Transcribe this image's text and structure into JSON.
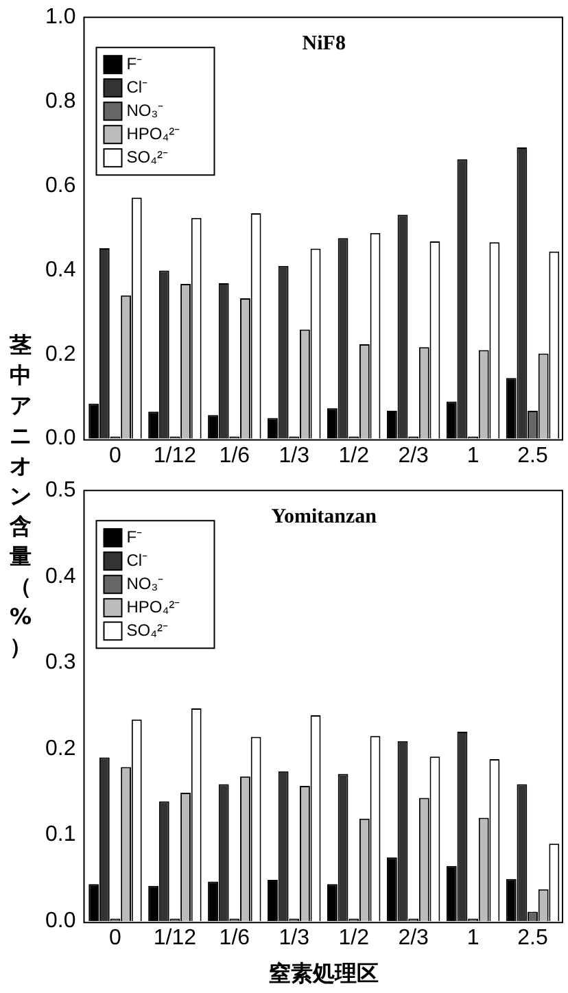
{
  "chart_data": [
    {
      "type": "bar",
      "title": "NiF8",
      "ylabel": "茎中アニオン含量（%）",
      "categories": [
        "0",
        "1/12",
        "1/6",
        "1/3",
        "1/2",
        "2/3",
        "1",
        "2.5"
      ],
      "series": [
        {
          "name": "F⁻",
          "color": "#000000",
          "values": [
            0.083,
            0.064,
            0.056,
            0.049,
            0.072,
            0.066,
            0.088,
            0.144
          ]
        },
        {
          "name": "Cl⁻",
          "color": "#333333",
          "values": [
            0.452,
            0.399,
            0.369,
            0.41,
            0.476,
            0.531,
            0.663,
            0.691
          ]
        },
        {
          "name": "NO₃⁻",
          "color": "#666666",
          "values": [
            0.005,
            0.005,
            0.005,
            0.005,
            0.005,
            0.005,
            0.005,
            0.066
          ]
        },
        {
          "name": "HPO₄²⁻",
          "color": "#bbbbbb",
          "values": [
            0.34,
            0.367,
            0.333,
            0.259,
            0.224,
            0.217,
            0.21,
            0.202
          ]
        },
        {
          "name": "SO₄²⁻",
          "color": "#ffffff",
          "values": [
            0.572,
            0.524,
            0.535,
            0.451,
            0.488,
            0.468,
            0.466,
            0.444
          ]
        }
      ],
      "ylim": [
        0,
        1
      ],
      "yticks": [
        {
          "value": 0,
          "label": "0.0"
        },
        {
          "value": 0.2,
          "label": "0.2"
        },
        {
          "value": 0.4,
          "label": "0.4"
        },
        {
          "value": 0.6,
          "label": "0.6"
        },
        {
          "value": 0.8,
          "label": "0.8"
        },
        {
          "value": 1,
          "label": "1.0"
        }
      ],
      "legend": "top left"
    },
    {
      "type": "bar",
      "title": "Yomitanzan",
      "xlabel": "窒素処理区",
      "categories": [
        "0",
        "1/12",
        "1/6",
        "1/3",
        "1/2",
        "2/3",
        "1",
        "2.5"
      ],
      "series": [
        {
          "name": "F⁻",
          "color": "#000000",
          "values": [
            0.043,
            0.041,
            0.046,
            0.048,
            0.043,
            0.074,
            0.064,
            0.049
          ]
        },
        {
          "name": "Cl⁻",
          "color": "#333333",
          "values": [
            0.19,
            0.139,
            0.159,
            0.174,
            0.171,
            0.209,
            0.22,
            0.159
          ]
        },
        {
          "name": "NO₃⁻",
          "color": "#666666",
          "values": [
            0.003,
            0.003,
            0.003,
            0.003,
            0.003,
            0.003,
            0.003,
            0.011
          ]
        },
        {
          "name": "HPO₄²⁻",
          "color": "#bbbbbb",
          "values": [
            0.179,
            0.149,
            0.168,
            0.157,
            0.119,
            0.143,
            0.12,
            0.037
          ]
        },
        {
          "name": "SO₄²⁻",
          "color": "#ffffff",
          "values": [
            0.234,
            0.247,
            0.214,
            0.239,
            0.215,
            0.191,
            0.188,
            0.09
          ]
        }
      ],
      "ylim": [
        0,
        0.5
      ],
      "yticks": [
        {
          "value": 0,
          "label": "0.0"
        },
        {
          "value": 0.1,
          "label": "0.1"
        },
        {
          "value": 0.2,
          "label": "0.2"
        },
        {
          "value": 0.3,
          "label": "0.3"
        },
        {
          "value": 0.4,
          "label": "0.4"
        },
        {
          "value": 0.5,
          "label": "0.5"
        }
      ],
      "legend": "top left"
    }
  ]
}
